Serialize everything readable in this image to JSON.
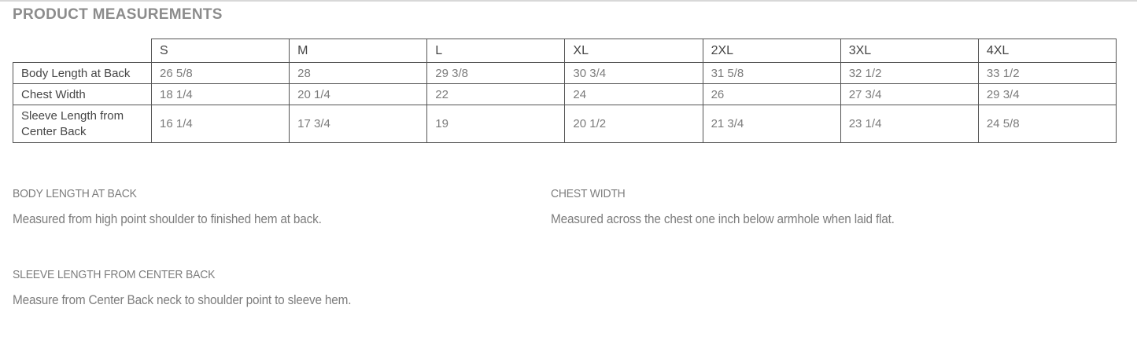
{
  "title": "PRODUCT MEASUREMENTS",
  "colors": {
    "background": "#ffffff",
    "top_divider": "#d8d8d8",
    "title_text": "#8c8c8c",
    "table_border": "#545454",
    "table_header_text": "#464646",
    "table_value_text": "#7b7b7b",
    "section_text": "#7d7d7d"
  },
  "table": {
    "headers": [
      "S",
      "M",
      "L",
      "XL",
      "2XL",
      "3XL",
      "4XL"
    ],
    "rows": [
      {
        "label": "Body Length at Back",
        "values": [
          "26 5/8",
          "28",
          "29 3/8",
          "30 3/4",
          "31 5/8",
          "32 1/2",
          "33 1/2"
        ]
      },
      {
        "label": "Chest Width",
        "values": [
          "18 1/4",
          "20 1/4",
          "22",
          "24",
          "26",
          "27 3/4",
          "29 3/4"
        ]
      },
      {
        "label": "Sleeve Length from Center Back",
        "values": [
          "16 1/4",
          "17 3/4",
          "19",
          "20 1/2",
          "21 3/4",
          "23 1/4",
          "24 5/8"
        ]
      }
    ]
  },
  "sections": [
    {
      "heading": "BODY LENGTH AT BACK",
      "body": "Measured from high point shoulder to finished hem at back."
    },
    {
      "heading": "CHEST WIDTH",
      "body": "Measured across the chest one inch below armhole when laid flat."
    },
    {
      "heading": "SLEEVE LENGTH FROM CENTER BACK",
      "body": "Measure from Center Back neck to shoulder point to sleeve hem."
    }
  ]
}
